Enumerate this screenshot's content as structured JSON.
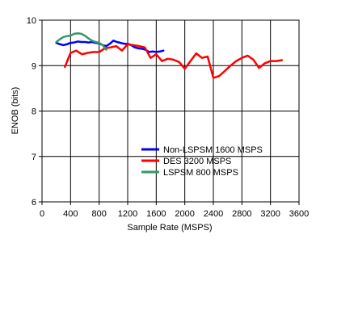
{
  "chart_data": {
    "type": "line",
    "title": "",
    "xlabel": "Sample Rate (MSPS)",
    "ylabel": "ENOB (bits)",
    "xlim": [
      0,
      3600
    ],
    "ylim": [
      6,
      10
    ],
    "x_ticks": [
      "0",
      "400",
      "800",
      "1200",
      "1600",
      "2000",
      "2400",
      "2800",
      "3200",
      "3600"
    ],
    "y_ticks": [
      "6",
      "7",
      "8",
      "9",
      "10"
    ],
    "grid": true,
    "legend_position": "lower-right",
    "series": [
      {
        "name": "Non-LSPSM 1600 MSPS",
        "color": "#0000ff",
        "x": [
          200,
          250,
          300,
          350,
          400,
          450,
          500,
          550,
          600,
          650,
          700,
          750,
          800,
          850,
          900,
          950,
          1000,
          1050,
          1100,
          1150,
          1200,
          1250,
          1300,
          1350,
          1400,
          1450,
          1500,
          1550,
          1600,
          1650,
          1700
        ],
        "y": [
          9.5,
          9.47,
          9.45,
          9.47,
          9.5,
          9.51,
          9.53,
          9.52,
          9.52,
          9.51,
          9.52,
          9.5,
          9.49,
          9.45,
          9.43,
          9.48,
          9.55,
          9.52,
          9.5,
          9.48,
          9.48,
          9.45,
          9.4,
          9.38,
          9.37,
          9.35,
          9.3,
          9.31,
          9.3,
          9.31,
          9.33
        ]
      },
      {
        "name": "DES 3200 MSPS",
        "color": "#ff0000",
        "x": [
          320,
          400,
          480,
          560,
          640,
          720,
          800,
          880,
          960,
          1040,
          1120,
          1200,
          1280,
          1360,
          1440,
          1520,
          1600,
          1680,
          1760,
          1840,
          1920,
          2000,
          2080,
          2160,
          2240,
          2320,
          2400,
          2480,
          2560,
          2640,
          2720,
          2800,
          2880,
          2960,
          3040,
          3120,
          3200,
          3280,
          3360
        ],
        "y": [
          8.97,
          9.28,
          9.33,
          9.25,
          9.28,
          9.3,
          9.3,
          9.38,
          9.4,
          9.43,
          9.33,
          9.47,
          9.45,
          9.43,
          9.4,
          9.17,
          9.25,
          9.1,
          9.15,
          9.13,
          9.08,
          8.93,
          9.1,
          9.27,
          9.17,
          9.2,
          8.73,
          8.77,
          8.88,
          9.0,
          9.1,
          9.17,
          9.22,
          9.13,
          8.95,
          9.05,
          9.1,
          9.1,
          9.12
        ]
      },
      {
        "name": "LSPSM 800 MSPS",
        "color": "#339966",
        "x": [
          200,
          250,
          300,
          350,
          400,
          450,
          500,
          550,
          600,
          650,
          700,
          750,
          800,
          850,
          900
        ],
        "y": [
          9.52,
          9.58,
          9.63,
          9.65,
          9.66,
          9.7,
          9.71,
          9.7,
          9.66,
          9.6,
          9.55,
          9.52,
          9.5,
          9.45,
          9.35
        ]
      }
    ]
  }
}
